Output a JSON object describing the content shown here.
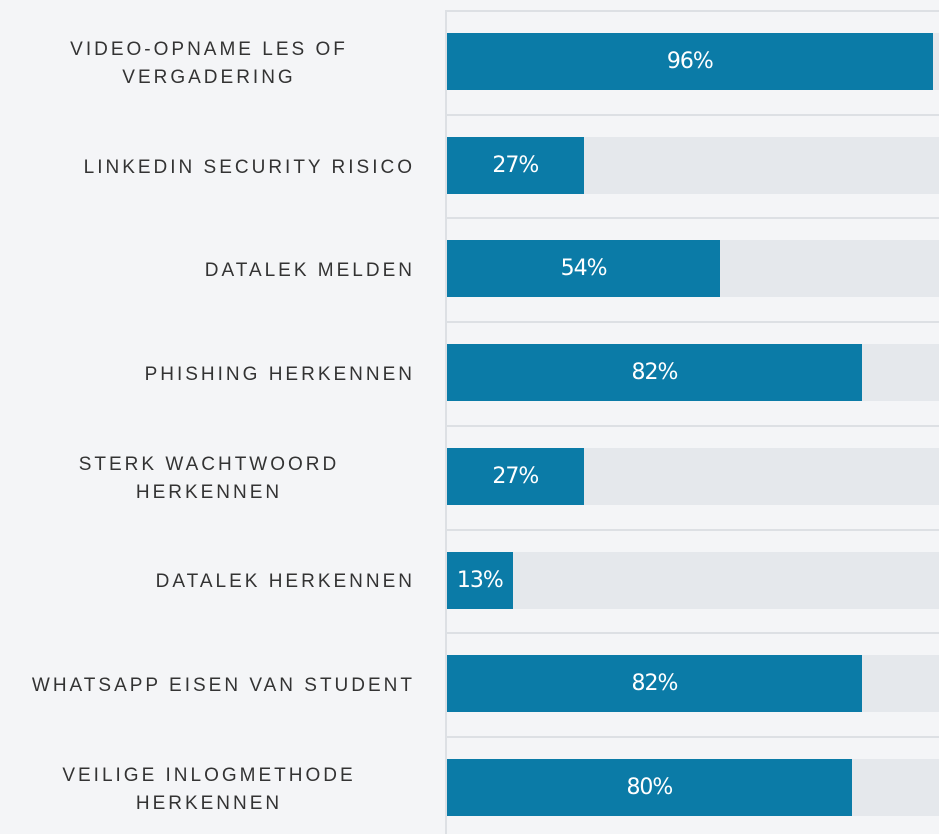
{
  "chart_data": {
    "type": "barh",
    "categories": [
      "VIDEO-OPNAME LES OF VERGADERING",
      "LINKEDIN SECURITY RISICO",
      "DATALEK MELDEN",
      "PHISHING HERKENNEN",
      "STERK WACHTWOORD HERKENNEN",
      "DATALEK HERKENNEN",
      "WHATSAPP EISEN VAN STUDENT",
      "VEILIGE INLOGMETHODE HERKENNEN"
    ],
    "values": [
      96,
      27,
      54,
      82,
      27,
      13,
      82,
      80
    ],
    "value_labels": [
      "96%",
      "27%",
      "54%",
      "82%",
      "27%",
      "13%",
      "82%",
      "80%"
    ],
    "xlim": [
      0,
      100
    ],
    "color": "#0b7ba7"
  }
}
